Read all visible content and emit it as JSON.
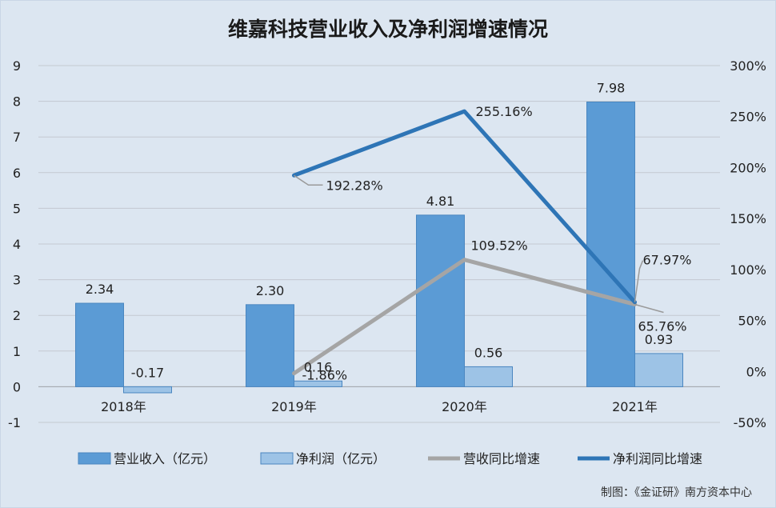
{
  "chart_data": {
    "type": "bar",
    "title": "维嘉科技营业收入及净利润增速情况",
    "categories": [
      "2018年",
      "2019年",
      "2020年",
      "2021年"
    ],
    "y_left": {
      "range": [
        -1,
        9
      ],
      "ticks": [
        "-1",
        "0",
        "1",
        "2",
        "3",
        "4",
        "5",
        "6",
        "7",
        "8",
        "9"
      ]
    },
    "y_right": {
      "range": [
        -50,
        300
      ],
      "unit": "%",
      "ticks": [
        "-50%",
        "0%",
        "50%",
        "100%",
        "150%",
        "200%",
        "250%",
        "300%"
      ]
    },
    "grid": true,
    "legend_position": "bottom",
    "series": [
      {
        "name": "营业收入（亿元）",
        "type": "bar",
        "axis": "left",
        "color": "#5b9bd5",
        "values": [
          2.34,
          2.3,
          4.81,
          7.98
        ],
        "labels": [
          "2.34",
          "2.30",
          "4.81",
          "7.98"
        ]
      },
      {
        "name": "净利润（亿元）",
        "type": "bar",
        "axis": "left",
        "color": "#9dc3e6",
        "values": [
          -0.17,
          0.16,
          0.56,
          0.93
        ],
        "labels": [
          "-0.17",
          "0.16",
          "0.56",
          "0.93"
        ]
      },
      {
        "name": "营收同比增速",
        "type": "line",
        "axis": "right",
        "color": "#a5a5a5",
        "values": [
          null,
          -1.86,
          109.52,
          65.76
        ],
        "labels": [
          "",
          "-1.86%",
          "109.52%",
          "65.76%"
        ]
      },
      {
        "name": "净利润同比增速",
        "type": "line",
        "axis": "right",
        "color": "#2e75b6",
        "values": [
          null,
          192.28,
          255.16,
          67.97
        ],
        "labels": [
          "",
          "192.28%",
          "255.16%",
          "67.97%"
        ]
      }
    ],
    "source": "制图：《金证研》南方资本中心"
  }
}
